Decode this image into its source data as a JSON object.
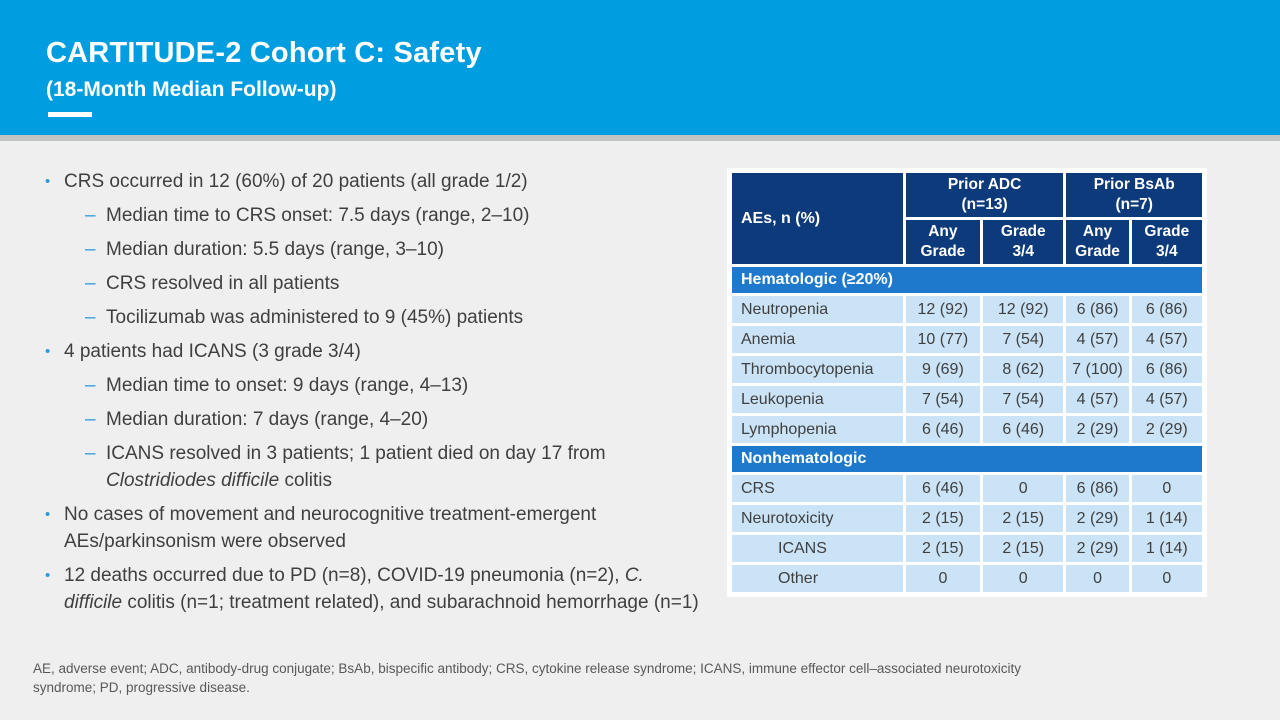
{
  "slide": {
    "title": "CARTITUDE-2 Cohort C: Safety",
    "subtitle": "(18-Month Median Follow-up)"
  },
  "colors": {
    "header_blue": "#009de0",
    "table_navy": "#0d3a7b",
    "section_band_blue": "#1e79cd",
    "light_cell_blue": "#cbe3f6",
    "bullet_accent": "#2b9cd8",
    "body_text": "#3f3f3f"
  },
  "bullets": [
    {
      "level": 1,
      "segments": [
        {
          "text": "CRS occurred in 12 (60%) of 20 patients (all grade 1/2)"
        }
      ]
    },
    {
      "level": 2,
      "segments": [
        {
          "text": "Median time to CRS onset: 7.5 days (range, 2–10)"
        }
      ]
    },
    {
      "level": 2,
      "segments": [
        {
          "text": "Median duration: 5.5 days (range, 3–10)"
        }
      ]
    },
    {
      "level": 2,
      "segments": [
        {
          "text": "CRS resolved in all patients"
        }
      ]
    },
    {
      "level": 2,
      "segments": [
        {
          "text": "Tocilizumab was administered to 9 (45%) patients"
        }
      ]
    },
    {
      "level": 1,
      "segments": [
        {
          "text": "4 patients had ICANS (3 grade 3/4)"
        }
      ]
    },
    {
      "level": 2,
      "segments": [
        {
          "text": "Median time to onset: 9 days (range, 4–13)"
        }
      ]
    },
    {
      "level": 2,
      "segments": [
        {
          "text": "Median duration: 7 days (range, 4–20)"
        }
      ]
    },
    {
      "level": 2,
      "segments": [
        {
          "text": "ICANS resolved in 3 patients; 1 patient died on day 17 from "
        },
        {
          "text": "Clostridiodes difficile",
          "italic": true
        },
        {
          "text": " colitis"
        }
      ]
    },
    {
      "level": 1,
      "segments": [
        {
          "text": "No cases of movement and neurocognitive treatment-emergent AEs/parkinsonism were observed"
        }
      ]
    },
    {
      "level": 1,
      "segments": [
        {
          "text": "12 deaths occurred due to PD (n=8), COVID-19 pneumonia (n=2), "
        },
        {
          "text": "C. difficile",
          "italic": true
        },
        {
          "text": " colitis (n=1; treatment related), and subarachnoid hemorrhage (n=1)"
        }
      ]
    }
  ],
  "table": {
    "corner_label": "AEs, n (%)",
    "groups": [
      {
        "label": "Prior ADC\n(n=13)"
      },
      {
        "label": "Prior BsAb\n(n=7)"
      }
    ],
    "subheaders": [
      "Any\nGrade",
      "Grade\n3/4",
      "Any\nGrade",
      "Grade\n3/4"
    ],
    "sections": [
      {
        "title": "Hematologic (≥20%)",
        "rows": [
          {
            "label": "Neutropenia",
            "indent": false,
            "values": [
              "12 (92)",
              "12 (92)",
              "6 (86)",
              "6 (86)"
            ]
          },
          {
            "label": "Anemia",
            "indent": false,
            "values": [
              "10 (77)",
              "7 (54)",
              "4 (57)",
              "4 (57)"
            ]
          },
          {
            "label": "Thrombocytopenia",
            "indent": false,
            "values": [
              "9 (69)",
              "8 (62)",
              "7 (100)",
              "6 (86)"
            ]
          },
          {
            "label": "Leukopenia",
            "indent": false,
            "values": [
              "7 (54)",
              "7 (54)",
              "4 (57)",
              "4 (57)"
            ]
          },
          {
            "label": "Lymphopenia",
            "indent": false,
            "values": [
              "6 (46)",
              "6 (46)",
              "2 (29)",
              "2 (29)"
            ]
          }
        ]
      },
      {
        "title": "Nonhematologic",
        "rows": [
          {
            "label": "CRS",
            "indent": false,
            "values": [
              "6 (46)",
              "0",
              "6 (86)",
              "0"
            ]
          },
          {
            "label": "Neurotoxicity",
            "indent": false,
            "values": [
              "2 (15)",
              "2 (15)",
              "2 (29)",
              "1 (14)"
            ]
          },
          {
            "label": "ICANS",
            "indent": true,
            "values": [
              "2 (15)",
              "2 (15)",
              "2 (29)",
              "1 (14)"
            ]
          },
          {
            "label": "Other",
            "indent": true,
            "values": [
              "0",
              "0",
              "0",
              "0"
            ]
          }
        ]
      }
    ]
  },
  "footnote": "AE, adverse event; ADC, antibody-drug conjugate; BsAb, bispecific antibody; CRS, cytokine release syndrome; ICANS, immune effector cell–associated neurotoxicity syndrome; PD, progressive disease."
}
